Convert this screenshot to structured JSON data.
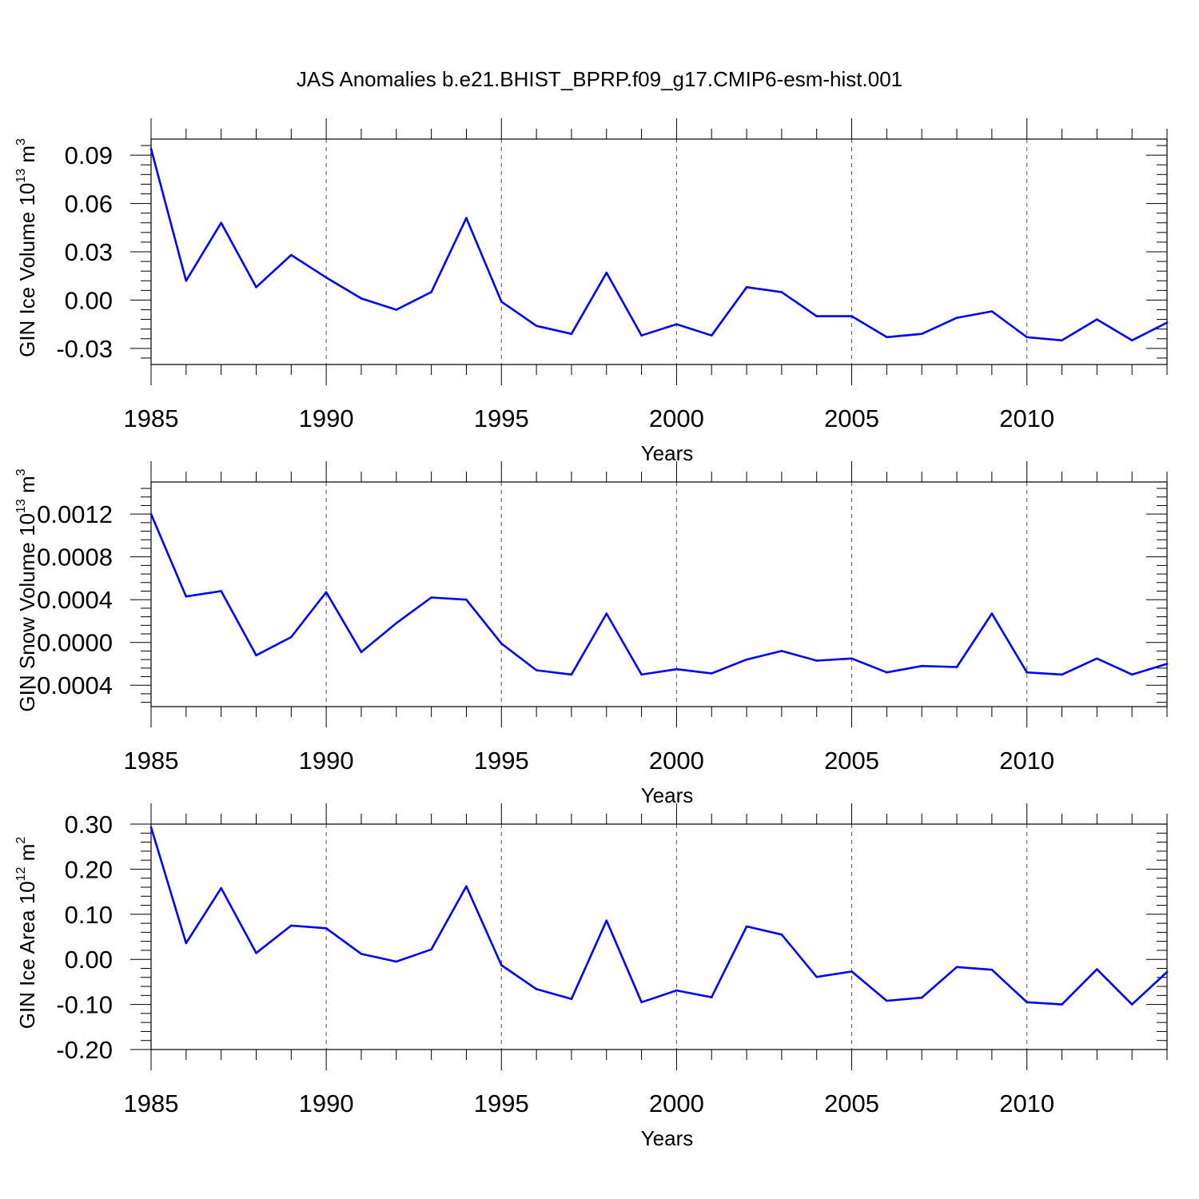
{
  "title": "JAS Anomalies b.e21.BHIST_BPRP.f09_g17.CMIP6-esm-hist.001",
  "series_color": "#0000ff",
  "chart_data": [
    {
      "type": "line",
      "ylabel": "GIN Ice Volume 10",
      "ylabel_sup": "13",
      "ylabel_unit": " m",
      "ylabel_unit_sup": "3",
      "xlabel": "Years",
      "xlim": [
        1985,
        2014
      ],
      "ylim": [
        -0.04,
        0.1
      ],
      "x_ticks": [
        1985,
        1990,
        1995,
        2000,
        2005,
        2010
      ],
      "y_ticks": [
        -0.03,
        0.0,
        0.03,
        0.06,
        0.09
      ],
      "y_tick_labels": [
        "-0.03",
        "0.00",
        "0.03",
        "0.06",
        "0.09"
      ],
      "x": [
        1985,
        1986,
        1987,
        1988,
        1989,
        1990,
        1991,
        1992,
        1993,
        1994,
        1995,
        1996,
        1997,
        1998,
        1999,
        2000,
        2001,
        2002,
        2003,
        2004,
        2005,
        2006,
        2007,
        2008,
        2009,
        2010,
        2011,
        2012,
        2013,
        2014
      ],
      "values": [
        0.094,
        0.012,
        0.048,
        0.008,
        0.028,
        0.014,
        0.001,
        -0.006,
        0.005,
        0.051,
        -0.001,
        -0.016,
        -0.021,
        0.017,
        -0.022,
        -0.015,
        -0.022,
        0.008,
        0.005,
        -0.01,
        -0.01,
        -0.023,
        -0.021,
        -0.011,
        -0.007,
        -0.023,
        -0.025,
        -0.012,
        -0.025,
        -0.014
      ]
    },
    {
      "type": "line",
      "ylabel": "GIN Snow Volume 10",
      "ylabel_sup": "13",
      "ylabel_unit": " m",
      "ylabel_unit_sup": "3",
      "xlabel": "Years",
      "xlim": [
        1985,
        2014
      ],
      "ylim": [
        -0.0006,
        0.0015
      ],
      "x_ticks": [
        1985,
        1990,
        1995,
        2000,
        2005,
        2010
      ],
      "y_ticks": [
        -0.0004,
        0.0,
        0.0004,
        0.0008,
        0.0012
      ],
      "y_tick_labels": [
        "-0.0004",
        "0.0000",
        "0.0004",
        "0.0008",
        "0.0012"
      ],
      "x": [
        1985,
        1986,
        1987,
        1988,
        1989,
        1990,
        1991,
        1992,
        1993,
        1994,
        1995,
        1996,
        1997,
        1998,
        1999,
        2000,
        2001,
        2002,
        2003,
        2004,
        2005,
        2006,
        2007,
        2008,
        2009,
        2010,
        2011,
        2012,
        2013,
        2014
      ],
      "values": [
        0.0012,
        0.00043,
        0.00048,
        -0.00012,
        5e-05,
        0.00047,
        -9e-05,
        0.00018,
        0.00042,
        0.0004,
        -1e-05,
        -0.00026,
        -0.0003,
        0.00027,
        -0.0003,
        -0.00025,
        -0.00029,
        -0.00016,
        -8e-05,
        -0.00017,
        -0.00015,
        -0.00028,
        -0.00022,
        -0.00023,
        0.00027,
        -0.00028,
        -0.0003,
        -0.00015,
        -0.0003,
        -0.0002
      ]
    },
    {
      "type": "line",
      "ylabel": "GIN Ice Area 10",
      "ylabel_sup": "12",
      "ylabel_unit": " m",
      "ylabel_unit_sup": "2",
      "xlabel": "Years",
      "xlim": [
        1985,
        2014
      ],
      "ylim": [
        -0.2,
        0.3
      ],
      "x_ticks": [
        1985,
        1990,
        1995,
        2000,
        2005,
        2010
      ],
      "y_ticks": [
        -0.2,
        -0.1,
        0.0,
        0.1,
        0.2,
        0.3
      ],
      "y_tick_labels": [
        "-0.20",
        "-0.10",
        "0.00",
        "0.10",
        "0.20",
        "0.30"
      ],
      "x": [
        1985,
        1986,
        1987,
        1988,
        1989,
        1990,
        1991,
        1992,
        1993,
        1994,
        1995,
        1996,
        1997,
        1998,
        1999,
        2000,
        2001,
        2002,
        2003,
        2004,
        2005,
        2006,
        2007,
        2008,
        2009,
        2010,
        2011,
        2012,
        2013,
        2014
      ],
      "values": [
        0.293,
        0.036,
        0.158,
        0.014,
        0.075,
        0.069,
        0.012,
        -0.005,
        0.022,
        0.162,
        -0.013,
        -0.066,
        -0.088,
        0.086,
        -0.095,
        -0.069,
        -0.084,
        0.073,
        0.055,
        -0.039,
        -0.027,
        -0.092,
        -0.085,
        -0.017,
        -0.023,
        -0.095,
        -0.1,
        -0.022,
        -0.1,
        -0.028
      ]
    }
  ]
}
